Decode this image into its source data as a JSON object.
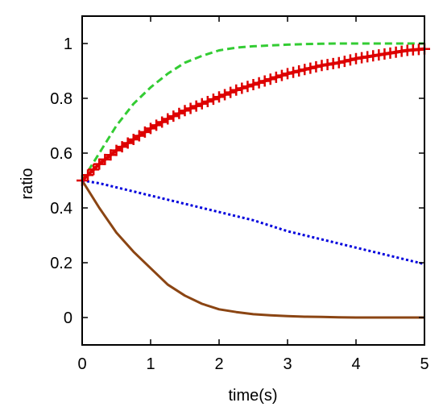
{
  "chart_data": {
    "type": "line",
    "title": "",
    "xlabel": "time(s)",
    "ylabel": "ratio",
    "xlim": [
      0,
      5
    ],
    "ylim": [
      -0.1,
      1.1
    ],
    "xticks": [
      "0",
      "1",
      "2",
      "3",
      "4",
      "5"
    ],
    "yticks": [
      "0",
      "0.2",
      "0.4",
      "0.6",
      "0.8",
      "1"
    ],
    "grid": false,
    "legend": false,
    "x": [
      0,
      0.25,
      0.5,
      0.75,
      1.0,
      1.25,
      1.5,
      1.75,
      2.0,
      2.25,
      2.5,
      2.75,
      3.0,
      3.25,
      3.5,
      3.75,
      4.0,
      4.25,
      4.5,
      4.75,
      5.0
    ],
    "series": [
      {
        "color": "#33cc33",
        "style": "dashed",
        "values": [
          0.5,
          0.6,
          0.7,
          0.78,
          0.84,
          0.89,
          0.93,
          0.955,
          0.975,
          0.985,
          0.99,
          0.993,
          0.996,
          0.998,
          0.999,
          1.0,
          1.0,
          1.0,
          1.0,
          1.0,
          1.0
        ]
      },
      {
        "color": "#dd0000",
        "style": "solid-cross",
        "values": [
          0.5,
          0.56,
          0.61,
          0.65,
          0.69,
          0.725,
          0.755,
          0.78,
          0.805,
          0.83,
          0.85,
          0.87,
          0.89,
          0.905,
          0.92,
          0.93,
          0.945,
          0.955,
          0.965,
          0.975,
          0.98
        ]
      },
      {
        "color": "#0000dd",
        "style": "dotted",
        "values": [
          0.5,
          0.49,
          0.475,
          0.46,
          0.445,
          0.43,
          0.415,
          0.4,
          0.385,
          0.37,
          0.355,
          0.335,
          0.315,
          0.3,
          0.285,
          0.27,
          0.255,
          0.24,
          0.225,
          0.21,
          0.195
        ]
      },
      {
        "color": "#8b4513",
        "style": "solid",
        "values": [
          0.5,
          0.4,
          0.31,
          0.24,
          0.18,
          0.12,
          0.08,
          0.05,
          0.03,
          0.02,
          0.012,
          0.008,
          0.005,
          0.003,
          0.002,
          0.001,
          0.0,
          0.0,
          0.0,
          0.0,
          0.0
        ]
      }
    ]
  }
}
